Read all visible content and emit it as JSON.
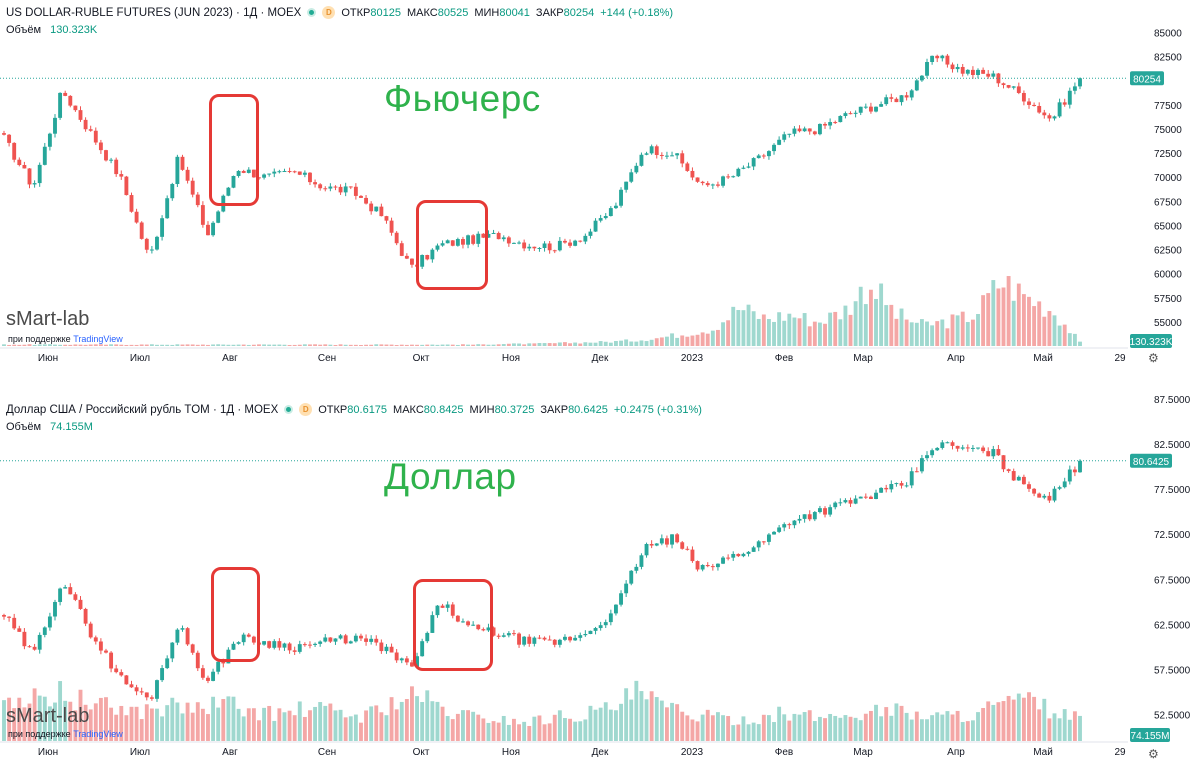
{
  "top": {
    "title": "US DOLLAR-RUBLE FUTURES (JUN 2023) · 1Д · MOEX",
    "badge_letter": "D",
    "ohlc": [
      {
        "label": "ОТКР",
        "value": "80125"
      },
      {
        "label": "МАКС",
        "value": "80525"
      },
      {
        "label": "МИН",
        "value": "80041"
      },
      {
        "label": "ЗАКР",
        "value": "80254"
      }
    ],
    "change": "+144 (+0.18%)",
    "volume_label": "Объём",
    "volume_value": "130.323K",
    "big_label": "Фьючерс",
    "last_price_tag": "80254",
    "volume_tag": "130.323K"
  },
  "bottom": {
    "title": "Доллар США / Российский рубль TOM · 1Д · MOEX",
    "badge_letter": "D",
    "ohlc": [
      {
        "label": "ОТКР",
        "value": "80.6175"
      },
      {
        "label": "МАКС",
        "value": "80.8425"
      },
      {
        "label": "МИН",
        "value": "80.3725"
      },
      {
        "label": "ЗАКР",
        "value": "80.6425"
      }
    ],
    "change": "+0.2475 (+0.31%)",
    "volume_label": "Объём",
    "volume_value": "74.155M",
    "big_label": "Доллар",
    "last_price_tag": "80.6425",
    "volume_tag": "74.155M"
  },
  "watermark": {
    "brand": "sMart-lab",
    "sub_prefix": "при поддержке",
    "sub_brand": "TradingView"
  },
  "colors": {
    "up": "#26a69a",
    "down": "#ef5350",
    "vol_up": "#9fd8cf",
    "vol_down": "#f4a7a6",
    "annotation": "#2fb24c",
    "highlight_box": "#e53935"
  },
  "chart_data": [
    {
      "type": "candlestick",
      "title": "US DOLLAR-RUBLE FUTURES (JUN 2023) · 1Д · MOEX",
      "x_tick_labels": [
        "Июн",
        "Июл",
        "Авг",
        "Сен",
        "Окт",
        "Ноя",
        "Дек",
        "2023",
        "Фев",
        "Мар",
        "Апр",
        "Май",
        "29"
      ],
      "y_tick_labels": [
        "85000",
        "82500",
        "77500",
        "75000",
        "72500",
        "70000",
        "67500",
        "65000",
        "62500",
        "60000",
        "57500",
        "55000"
      ],
      "ylim": [
        52500,
        86500
      ],
      "last_price": 80254,
      "close_path": [
        {
          "x": "Июн",
          "y": 74000
        },
        {
          "x": "Июн",
          "y": 69000
        },
        {
          "x": "Июн",
          "y": 79000
        },
        {
          "x": "Июн",
          "y": 74500
        },
        {
          "x": "Июл",
          "y": 70000
        },
        {
          "x": "Июл",
          "y": 61500
        },
        {
          "x": "Июл",
          "y": 72000
        },
        {
          "x": "Июл",
          "y": 64000
        },
        {
          "x": "Авг",
          "y": 71000
        },
        {
          "x": "Авг",
          "y": 70000
        },
        {
          "x": "Авг",
          "y": 70500
        },
        {
          "x": "Сен",
          "y": 69000
        },
        {
          "x": "Сен",
          "y": 68500
        },
        {
          "x": "Сен",
          "y": 66000
        },
        {
          "x": "Окт",
          "y": 60500
        },
        {
          "x": "Окт",
          "y": 63000
        },
        {
          "x": "Окт",
          "y": 63500
        },
        {
          "x": "Ноя",
          "y": 64000
        },
        {
          "x": "Ноя",
          "y": 63000
        },
        {
          "x": "Ноя",
          "y": 62800
        },
        {
          "x": "Дек",
          "y": 64000
        },
        {
          "x": "Дек",
          "y": 67000
        },
        {
          "x": "Дек",
          "y": 73000
        },
        {
          "x": "2023",
          "y": 72500
        },
        {
          "x": "2023",
          "y": 69000
        },
        {
          "x": "2023",
          "y": 70000
        },
        {
          "x": "Фев",
          "y": 72000
        },
        {
          "x": "Фев",
          "y": 74500
        },
        {
          "x": "Мар",
          "y": 75000
        },
        {
          "x": "Мар",
          "y": 76500
        },
        {
          "x": "Мар",
          "y": 77500
        },
        {
          "x": "Апр",
          "y": 78500
        },
        {
          "x": "Апр",
          "y": 82500
        },
        {
          "x": "Апр",
          "y": 81000
        },
        {
          "x": "Апр",
          "y": 80500
        },
        {
          "x": "Май",
          "y": 78500
        },
        {
          "x": "Май",
          "y": 76000
        },
        {
          "x": "Май",
          "y": 80254
        }
      ],
      "volume_last": "130.323K",
      "volume_relative_profile": [
        0.02,
        0.02,
        0.02,
        0.02,
        0.02,
        0.02,
        0.02,
        0.02,
        0.02,
        0.02,
        0.02,
        0.02,
        0.02,
        0.02,
        0.02,
        0.02,
        0.02,
        0.02,
        0.02,
        0.03,
        0.03,
        0.04,
        0.05,
        0.06,
        0.08,
        0.12,
        0.18,
        0.25,
        0.55,
        0.4,
        0.45,
        0.35,
        0.5,
        0.9,
        0.45,
        0.3,
        0.35,
        0.45,
        0.95,
        0.7,
        0.5,
        0.05
      ]
    },
    {
      "type": "candlestick",
      "title": "Доллар США / Российский рубль TOM · 1Д · MOEX",
      "x_tick_labels": [
        "Июн",
        "Июл",
        "Авг",
        "Сен",
        "Окт",
        "Ноя",
        "Дек",
        "2023",
        "Фев",
        "Мар",
        "Апр",
        "Май",
        "29"
      ],
      "y_tick_labels": [
        "87.5000",
        "82.5000",
        "77.5000",
        "72.5000",
        "67.5000",
        "62.5000",
        "57.5000",
        "52.5000"
      ],
      "ylim": [
        50.0,
        87.5
      ],
      "last_price": 80.6425,
      "close_path": [
        {
          "x": "Июн",
          "y": 63.5
        },
        {
          "x": "Июн",
          "y": 59.0
        },
        {
          "x": "Июн",
          "y": 67.5
        },
        {
          "x": "Июн",
          "y": 61.5
        },
        {
          "x": "Июл",
          "y": 56.5
        },
        {
          "x": "Июл",
          "y": 54.0
        },
        {
          "x": "Июл",
          "y": 62.5
        },
        {
          "x": "Июл",
          "y": 56.0
        },
        {
          "x": "Авг",
          "y": 61.0
        },
        {
          "x": "Авг",
          "y": 60.5
        },
        {
          "x": "Авг",
          "y": 60.0
        },
        {
          "x": "Сен",
          "y": 60.5
        },
        {
          "x": "Сен",
          "y": 61.0
        },
        {
          "x": "Сен",
          "y": 60.0
        },
        {
          "x": "Окт",
          "y": 57.5
        },
        {
          "x": "Окт",
          "y": 65.0
        },
        {
          "x": "Окт",
          "y": 62.0
        },
        {
          "x": "Ноя",
          "y": 61.5
        },
        {
          "x": "Ноя",
          "y": 60.5
        },
        {
          "x": "Ноя",
          "y": 60.5
        },
        {
          "x": "Дек",
          "y": 61.5
        },
        {
          "x": "Дек",
          "y": 64.0
        },
        {
          "x": "Дек",
          "y": 71.0
        },
        {
          "x": "2023",
          "y": 72.0
        },
        {
          "x": "2023",
          "y": 68.5
        },
        {
          "x": "2023",
          "y": 70.0
        },
        {
          "x": "Фев",
          "y": 71.5
        },
        {
          "x": "Фев",
          "y": 74.0
        },
        {
          "x": "Мар",
          "y": 75.0
        },
        {
          "x": "Мар",
          "y": 76.0
        },
        {
          "x": "Мар",
          "y": 77.0
        },
        {
          "x": "Апр",
          "y": 78.0
        },
        {
          "x": "Апр",
          "y": 82.5
        },
        {
          "x": "Апр",
          "y": 82.0
        },
        {
          "x": "Апр",
          "y": 81.5
        },
        {
          "x": "Май",
          "y": 78.0
        },
        {
          "x": "Май",
          "y": 76.5
        },
        {
          "x": "Май",
          "y": 80.6425
        }
      ],
      "volume_last": "74.155M",
      "volume_relative_profile": [
        0.85,
        0.75,
        0.9,
        0.7,
        0.6,
        0.55,
        0.65,
        0.6,
        0.7,
        0.55,
        0.5,
        0.6,
        0.55,
        0.45,
        0.7,
        0.85,
        0.55,
        0.45,
        0.4,
        0.35,
        0.45,
        0.5,
        0.6,
        0.9,
        0.6,
        0.5,
        0.4,
        0.4,
        0.5,
        0.45,
        0.45,
        0.5,
        0.6,
        0.5,
        0.45,
        0.5,
        0.65,
        0.75,
        0.55,
        0.4
      ]
    }
  ]
}
